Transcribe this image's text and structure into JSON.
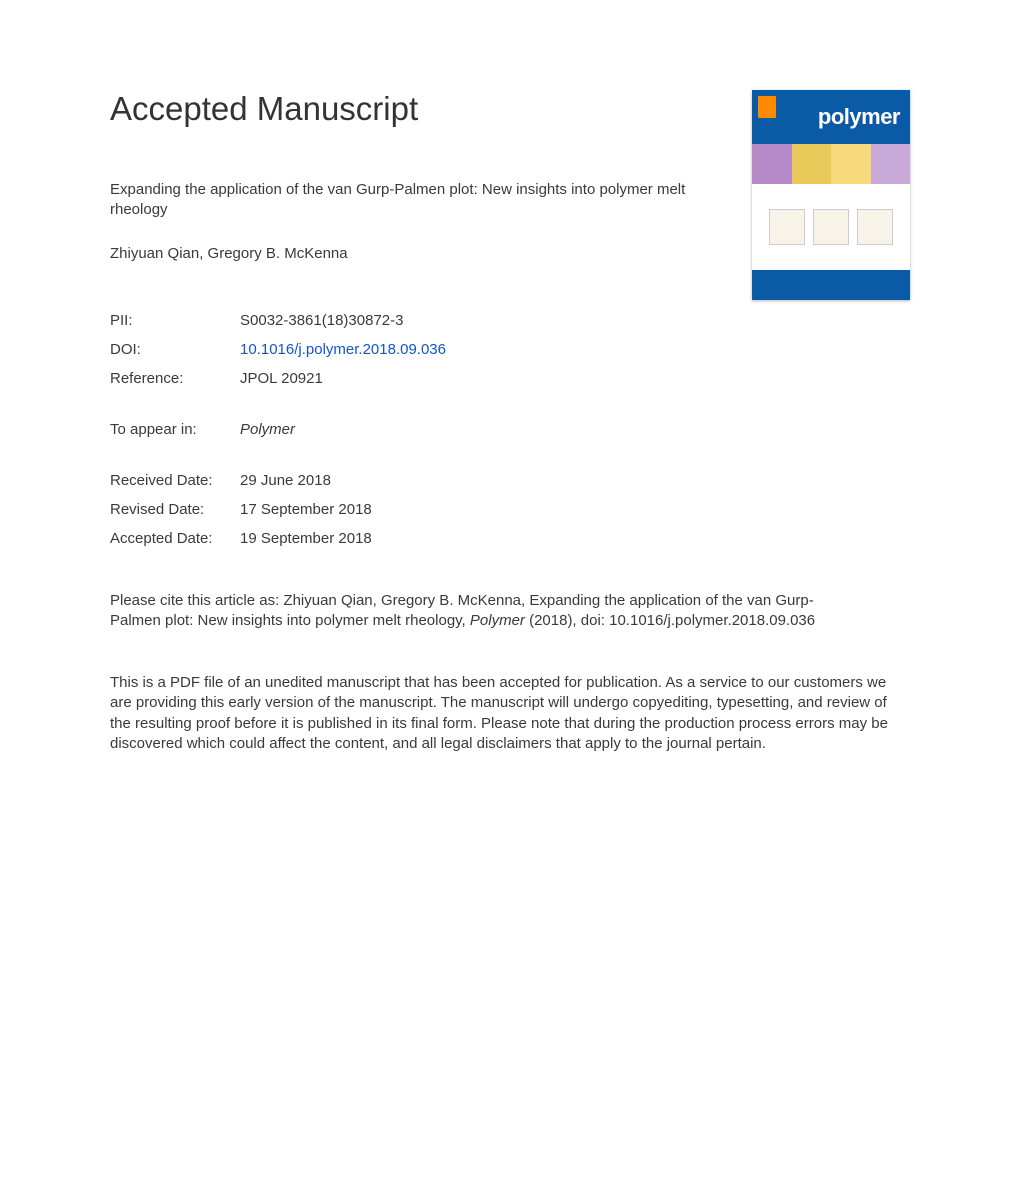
{
  "heading": "Accepted Manuscript",
  "article": {
    "title": "Expanding the application of the van Gurp-Palmen plot: New insights into polymer melt rheology",
    "authors": "Zhiyuan Qian, Gregory B. McKenna"
  },
  "cover": {
    "journal_name": "polymer",
    "colors": {
      "background": "#0a5aa6",
      "publisher_tab": "#ff8a00",
      "strip": [
        "#b588c7",
        "#e8c95a",
        "#f5d97a",
        "#c9a9d8"
      ]
    }
  },
  "meta": {
    "pii_label": "PII:",
    "pii_value": "S0032-3861(18)30872-3",
    "doi_label": "DOI:",
    "doi_value": "10.1016/j.polymer.2018.09.036",
    "ref_label": "Reference:",
    "ref_value": "JPOL 20921",
    "appear_label": "To appear in:",
    "appear_value": "Polymer",
    "received_label": "Received Date:",
    "received_value": "29 June 2018",
    "revised_label": "Revised Date:",
    "revised_value": "17 September 2018",
    "accepted_label": "Accepted Date:",
    "accepted_value": "19 September 2018"
  },
  "citation": {
    "prefix": "Please cite this article as: Zhiyuan Qian, Gregory B. McKenna, Expanding the application of the van Gurp-Palmen plot: New insights into polymer melt rheology, ",
    "journal": "Polymer",
    "suffix": " (2018), doi: 10.1016/j.polymer.2018.09.036"
  },
  "disclaimer": "This is a PDF file of an unedited manuscript that has been accepted for publication. As a service to our customers we are providing this early version of the manuscript. The manuscript will undergo copyediting, typesetting, and review of the resulting proof before it is published in its final form. Please note that during the production process errors may be discovered which could affect the content, and all legal disclaimers that apply to the journal pertain."
}
